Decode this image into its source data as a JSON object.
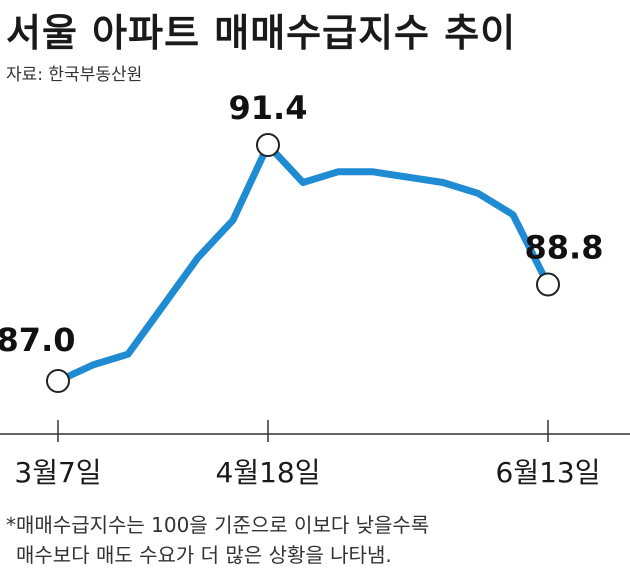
{
  "title": "서울 아파트 매매수급지수 추이",
  "source": "자료: 한국부동산원",
  "footnote": {
    "line1": "*매매수급지수는 100을 기준으로 이보다 낮을수록",
    "line2": "매수보다 매도 수요가 더 많은 상황을 나타냄."
  },
  "colors": {
    "line": "#1f8bd3",
    "axis": "#333333",
    "marker_fill": "#ffffff",
    "marker_stroke": "#222222"
  },
  "chart_data": {
    "type": "line",
    "title": "서울 아파트 매매수급지수 추이",
    "xlabel": "",
    "ylabel": "",
    "grid": false,
    "ylim": [
      86.5,
      91.8
    ],
    "x_tick_labels": [
      "3월7일",
      "4월18일",
      "6월13일"
    ],
    "x_tick_indices": [
      0,
      6,
      14
    ],
    "series": [
      {
        "values": [
          87.0,
          87.3,
          87.5,
          88.4,
          89.3,
          90.0,
          91.4,
          90.7,
          90.9,
          90.9,
          90.8,
          90.7,
          90.5,
          90.1,
          88.8
        ]
      }
    ],
    "highlighted_points": [
      {
        "index": 0,
        "label": "87.0"
      },
      {
        "index": 6,
        "label": "91.4"
      },
      {
        "index": 14,
        "label": "88.8"
      }
    ]
  }
}
